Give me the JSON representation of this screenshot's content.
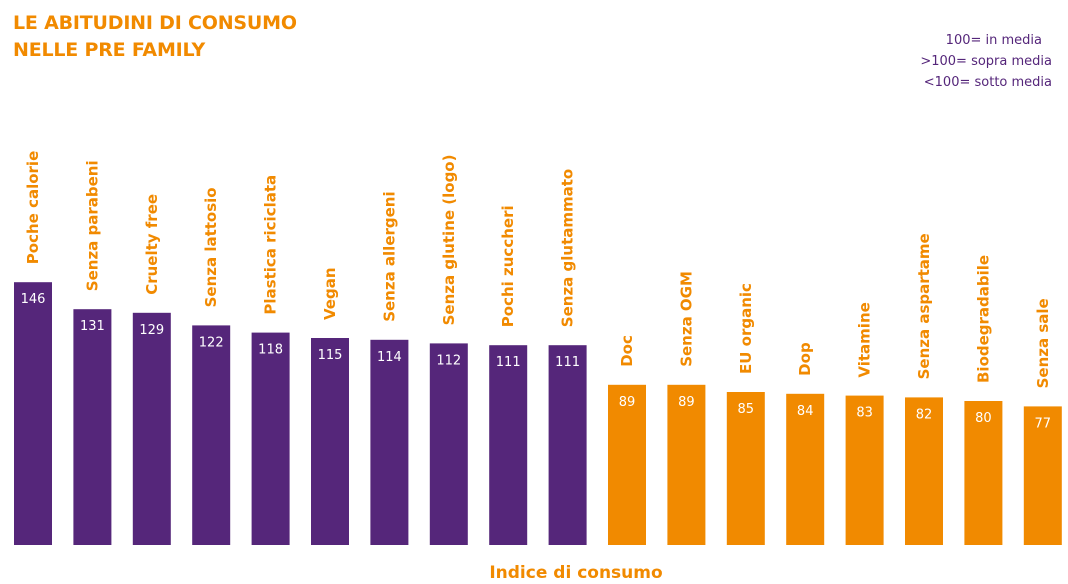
{
  "header": {
    "title_line1": "LE ABITUDINI DI CONSUMO",
    "title_line2": "NELLE PRE FAMILY"
  },
  "legend": {
    "items": [
      "100= in media",
      ">100= sopra media",
      "<100= sotto media"
    ]
  },
  "colors": {
    "above_average": "#55267a",
    "below_average": "#f18a00",
    "label_text": "#f18a00",
    "value_text": "#ffffff"
  },
  "chart_data": {
    "type": "bar",
    "title": "LE ABITUDINI DI CONSUMO NELLE PRE FAMILY",
    "xlabel": "Indice di consumo",
    "ylabel": "",
    "baseline": 100,
    "ylim": [
      0,
      150
    ],
    "grid": false,
    "legend_position": "top-right",
    "categories": [
      "Poche calorie",
      "Senza parabeni",
      "Cruelty free",
      "Senza lattosio",
      "Plastica riciclata",
      "Vegan",
      "Senza allergeni",
      "Senza glutine (logo)",
      "Pochi zuccheri",
      "Senza glutammato",
      "Doc",
      "Senza OGM",
      "EU organic",
      "Dop",
      "Vitamine",
      "Senza aspartame",
      "Biodegradabile",
      "Senza sale"
    ],
    "values": [
      146,
      131,
      129,
      122,
      118,
      115,
      114,
      112,
      111,
      111,
      89,
      89,
      85,
      84,
      83,
      82,
      80,
      77
    ]
  }
}
